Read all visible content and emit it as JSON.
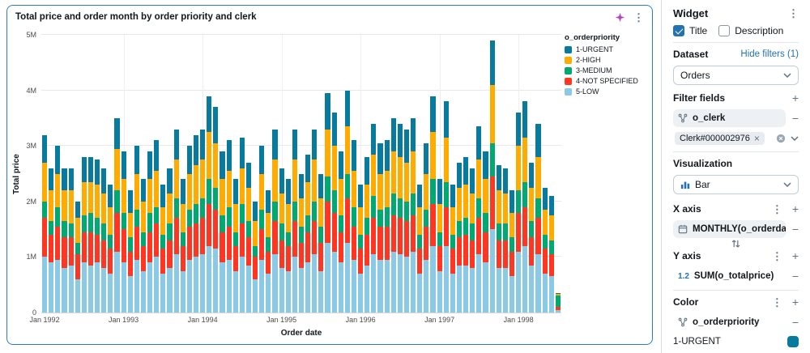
{
  "widget_panel": {
    "title": "Widget",
    "title_checkbox": "Title",
    "title_checked": true,
    "description_checkbox": "Description",
    "description_checked": false,
    "dataset_label": "Dataset",
    "hide_filters_link": "Hide filters (1)",
    "dataset_value": "Orders",
    "filter_fields_label": "Filter fields",
    "filter_field": "o_clerk",
    "filter_chip": "Clerk#000002976",
    "visualization_label": "Visualization",
    "visualization_value": "Bar",
    "x_axis_label": "X axis",
    "x_axis_field": "MONTHLY(o_orderdate)",
    "y_axis_label": "Y axis",
    "y_axis_type_icon": "1.2",
    "y_axis_field": "SUM(o_totalprice)",
    "color_label": "Color",
    "color_field": "o_orderpriority",
    "color_item": "1-URGENT"
  },
  "icons": {
    "kebab": "⋮",
    "plus": "+",
    "minus": "−",
    "chip_remove": "×"
  },
  "chart_data": {
    "type": "bar",
    "stacked": true,
    "title": "Total price and order month by order priority and clerk",
    "xlabel": "Order date",
    "ylabel": "Total price",
    "values_unit": "millions",
    "ylim": [
      0,
      5
    ],
    "y_ticks": [
      "0",
      "1M",
      "2M",
      "3M",
      "4M",
      "5M"
    ],
    "x_tick_labels": [
      "Jan 1992",
      "Jan 1993",
      "Jan 1994",
      "Jan 1995",
      "Jan 1996",
      "Jan 1997",
      "Jan 1998"
    ],
    "x_tick_indices": [
      0,
      12,
      24,
      36,
      48,
      60,
      72
    ],
    "legend_title": "o_orderpriority",
    "legend_order": [
      "1-URGENT",
      "2-HIGH",
      "3-MEDIUM",
      "4-NOT SPECIFIED",
      "5-LOW"
    ],
    "categories": [
      "1992-01",
      "1992-02",
      "1992-03",
      "1992-04",
      "1992-05",
      "1992-06",
      "1992-07",
      "1992-08",
      "1992-09",
      "1992-10",
      "1992-11",
      "1992-12",
      "1993-01",
      "1993-02",
      "1993-03",
      "1993-04",
      "1993-05",
      "1993-06",
      "1993-07",
      "1993-08",
      "1993-09",
      "1993-10",
      "1993-11",
      "1993-12",
      "1994-01",
      "1994-02",
      "1994-03",
      "1994-04",
      "1994-05",
      "1994-06",
      "1994-07",
      "1994-08",
      "1994-09",
      "1994-10",
      "1994-11",
      "1994-12",
      "1995-01",
      "1995-02",
      "1995-03",
      "1995-04",
      "1995-05",
      "1995-06",
      "1995-07",
      "1995-08",
      "1995-09",
      "1995-10",
      "1995-11",
      "1995-12",
      "1996-01",
      "1996-02",
      "1996-03",
      "1996-04",
      "1996-05",
      "1996-06",
      "1996-07",
      "1996-08",
      "1996-09",
      "1996-10",
      "1996-11",
      "1996-12",
      "1997-01",
      "1997-02",
      "1997-03",
      "1997-04",
      "1997-05",
      "1997-06",
      "1997-07",
      "1997-08",
      "1997-09",
      "1997-10",
      "1997-11",
      "1997-12",
      "1998-01",
      "1998-02",
      "1998-03",
      "1998-04",
      "1998-05",
      "1998-06",
      "1998-07"
    ],
    "series": [
      {
        "name": "5-LOW",
        "color": "#8BCAE7",
        "values": [
          1.0,
          0.9,
          0.95,
          0.8,
          0.85,
          0.6,
          0.9,
          0.85,
          0.9,
          0.8,
          0.7,
          1.1,
          0.9,
          0.65,
          0.95,
          0.75,
          0.9,
          1.0,
          0.7,
          0.8,
          1.05,
          0.75,
          0.95,
          1.0,
          1.05,
          1.2,
          1.15,
          0.9,
          0.95,
          0.75,
          1.0,
          0.85,
          0.6,
          0.95,
          0.7,
          1.05,
          0.8,
          0.75,
          1.0,
          0.8,
          0.9,
          1.05,
          0.75,
          1.25,
          1.1,
          0.9,
          1.25,
          0.95,
          0.7,
          0.85,
          1.05,
          0.95,
          0.95,
          1.1,
          1.05,
          1.0,
          1.1,
          0.7,
          0.95,
          1.2,
          0.75,
          1.2,
          0.7,
          0.85,
          0.85,
          0.8,
          1.05,
          0.9,
          1.5,
          0.8,
          0.8,
          0.65,
          1.1,
          1.2,
          0.85,
          1.05,
          0.7,
          0.65,
          0.05
        ]
      },
      {
        "name": "4-NOT SPECIFIED",
        "color": "#FF3621",
        "values": [
          0.7,
          0.5,
          0.6,
          0.55,
          0.5,
          0.45,
          0.55,
          0.6,
          0.5,
          0.5,
          0.45,
          0.7,
          0.6,
          0.45,
          0.6,
          0.45,
          0.55,
          0.6,
          0.45,
          0.5,
          0.65,
          0.45,
          0.6,
          0.6,
          0.65,
          0.75,
          0.7,
          0.55,
          0.6,
          0.45,
          0.6,
          0.5,
          0.4,
          0.55,
          0.4,
          0.6,
          0.5,
          0.45,
          0.65,
          0.45,
          0.55,
          0.6,
          0.5,
          0.75,
          0.7,
          0.55,
          0.8,
          0.6,
          0.45,
          0.55,
          0.65,
          0.6,
          0.6,
          0.65,
          0.65,
          0.65,
          0.65,
          0.45,
          0.6,
          0.75,
          0.45,
          0.7,
          0.45,
          0.5,
          0.55,
          0.5,
          0.65,
          0.55,
          0.95,
          0.5,
          0.5,
          0.45,
          0.7,
          0.7,
          0.5,
          0.65,
          0.45,
          0.4,
          0.05
        ]
      },
      {
        "name": "3-MEDIUM",
        "color": "#00A972",
        "values": [
          0.3,
          0.25,
          0.35,
          0.3,
          0.25,
          0.2,
          0.3,
          0.35,
          0.3,
          0.3,
          0.25,
          0.4,
          0.3,
          0.25,
          0.3,
          0.25,
          0.35,
          0.3,
          0.25,
          0.3,
          0.35,
          0.25,
          0.3,
          0.35,
          0.35,
          0.45,
          0.4,
          0.3,
          0.35,
          0.25,
          0.35,
          0.3,
          0.2,
          0.35,
          0.25,
          0.35,
          0.3,
          0.25,
          0.35,
          0.3,
          0.3,
          0.35,
          0.3,
          0.45,
          0.4,
          0.3,
          0.45,
          0.35,
          0.25,
          0.3,
          0.4,
          0.3,
          0.35,
          0.4,
          0.35,
          0.35,
          0.4,
          0.25,
          0.3,
          0.45,
          0.25,
          0.45,
          0.25,
          0.3,
          0.3,
          0.3,
          0.35,
          0.35,
          0.6,
          0.3,
          0.3,
          0.25,
          0.4,
          0.45,
          0.3,
          0.35,
          0.25,
          0.25,
          0.2
        ]
      },
      {
        "name": "2-HIGH",
        "color": "#FFAB00",
        "values": [
          0.7,
          0.55,
          0.6,
          0.55,
          0.6,
          0.45,
          0.6,
          0.55,
          0.6,
          0.55,
          0.5,
          0.75,
          0.6,
          0.45,
          0.65,
          0.55,
          0.6,
          0.65,
          0.5,
          0.55,
          0.7,
          0.5,
          0.65,
          0.7,
          0.7,
          0.85,
          0.8,
          0.65,
          0.65,
          0.5,
          0.65,
          0.6,
          0.45,
          0.65,
          0.45,
          0.75,
          0.55,
          0.5,
          0.75,
          0.5,
          0.6,
          0.75,
          0.5,
          0.85,
          0.8,
          0.65,
          0.85,
          0.65,
          0.5,
          0.6,
          0.75,
          0.65,
          0.65,
          0.75,
          0.75,
          0.7,
          0.75,
          0.5,
          0.65,
          0.85,
          0.5,
          0.8,
          0.5,
          0.6,
          0.6,
          0.55,
          0.7,
          0.6,
          1.05,
          0.6,
          0.55,
          0.45,
          0.8,
          0.8,
          0.6,
          0.75,
          0.45,
          0.45,
          0.03
        ]
      },
      {
        "name": "1-URGENT",
        "color": "#077A9D",
        "values": [
          0.5,
          0.4,
          0.5,
          0.4,
          0.4,
          0.3,
          0.45,
          0.45,
          0.45,
          0.45,
          0.4,
          0.55,
          0.5,
          0.4,
          0.5,
          0.4,
          0.5,
          0.55,
          0.4,
          0.45,
          0.55,
          0.45,
          0.5,
          0.55,
          0.55,
          0.65,
          0.65,
          0.5,
          0.55,
          0.45,
          0.55,
          0.45,
          0.35,
          0.5,
          0.4,
          0.55,
          0.45,
          0.45,
          0.55,
          0.45,
          0.5,
          0.55,
          0.45,
          0.65,
          0.6,
          0.5,
          0.65,
          0.55,
          0.4,
          0.5,
          0.55,
          0.55,
          0.55,
          0.6,
          0.6,
          0.6,
          0.6,
          0.4,
          0.55,
          0.65,
          0.45,
          0.65,
          0.4,
          0.45,
          0.5,
          0.45,
          0.6,
          0.5,
          0.8,
          0.45,
          0.45,
          0.4,
          0.6,
          0.65,
          0.45,
          0.6,
          0.4,
          0.35,
          0.02
        ]
      }
    ]
  }
}
